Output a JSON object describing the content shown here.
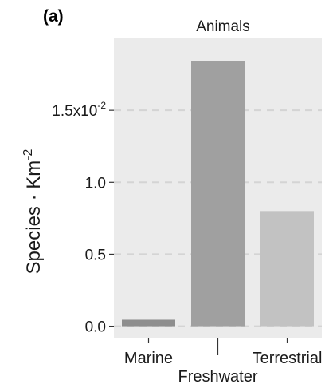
{
  "panel_label": "(a)",
  "chart_data": {
    "type": "bar",
    "title": "Animals",
    "xlabel": "",
    "ylabel": "Species · Km",
    "ylabel_superscript": "-2",
    "categories": [
      "Marine",
      "Freshwater",
      "Terrestrial"
    ],
    "values": [
      0.045,
      1.84,
      0.8
    ],
    "ylim": [
      -0.08,
      2.0
    ],
    "yticks": [
      {
        "value": 0.0,
        "label": "0.0",
        "superscript": ""
      },
      {
        "value": 0.5,
        "label": "0.5",
        "superscript": ""
      },
      {
        "value": 1.0,
        "label": "1.0",
        "superscript": ""
      },
      {
        "value": 1.5,
        "label": "1.5x10",
        "superscript": "-2"
      }
    ],
    "grid": true,
    "colors": {
      "panel_background": "#ebebeb",
      "gridline": "#d4d4d4",
      "bars": [
        "#8e8e8e",
        "#a0a0a0",
        "#c2c2c2"
      ],
      "text": "#1a1a1a"
    }
  }
}
